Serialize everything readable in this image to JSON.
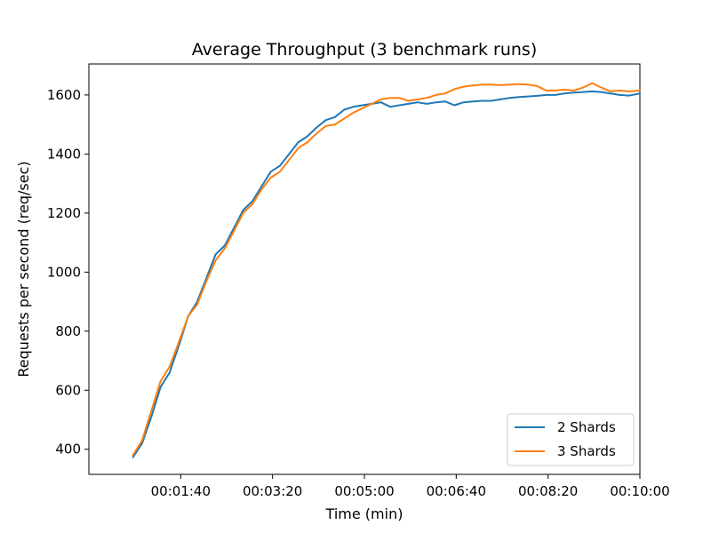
{
  "chart_data": {
    "type": "line",
    "title": "Average Throughput (3 benchmark runs)",
    "xlabel": "Time (min)",
    "ylabel": "Requests per second (req/sec)",
    "xlim": [
      0,
      600
    ],
    "ylim": [
      315,
      1705
    ],
    "x_ticks": [
      {
        "value": 100,
        "label": "00:01:40"
      },
      {
        "value": 200,
        "label": "00:03:20"
      },
      {
        "value": 300,
        "label": "00:05:00"
      },
      {
        "value": 400,
        "label": "00:06:40"
      },
      {
        "value": 500,
        "label": "00:08:20"
      },
      {
        "value": 600,
        "label": "00:10:00"
      }
    ],
    "y_ticks": [
      {
        "value": 400,
        "label": "400"
      },
      {
        "value": 600,
        "label": "600"
      },
      {
        "value": 800,
        "label": "800"
      },
      {
        "value": 1000,
        "label": "1000"
      },
      {
        "value": 1200,
        "label": "1200"
      },
      {
        "value": 1400,
        "label": "1400"
      },
      {
        "value": 1600,
        "label": "1600"
      }
    ],
    "grid": false,
    "legend_position": "lower-right",
    "series": [
      {
        "name": "2 Shards",
        "color": "#1f77b4",
        "x": [
          48,
          58,
          68,
          78,
          88,
          100,
          108,
          118,
          128,
          138,
          148,
          158,
          168,
          178,
          188,
          198,
          208,
          218,
          228,
          238,
          248,
          258,
          268,
          278,
          288,
          298,
          308,
          318,
          328,
          338,
          348,
          358,
          368,
          378,
          388,
          398,
          408,
          418,
          428,
          438,
          448,
          458,
          468,
          478,
          488,
          498,
          508,
          518,
          528,
          538,
          548,
          558,
          568,
          578,
          588,
          600
        ],
        "y": [
          373,
          420,
          510,
          610,
          660,
          770,
          850,
          900,
          980,
          1060,
          1090,
          1150,
          1210,
          1240,
          1290,
          1340,
          1360,
          1400,
          1440,
          1460,
          1490,
          1515,
          1525,
          1550,
          1560,
          1565,
          1570,
          1575,
          1560,
          1565,
          1570,
          1575,
          1570,
          1575,
          1578,
          1565,
          1575,
          1578,
          1580,
          1580,
          1585,
          1590,
          1593,
          1595,
          1597,
          1600,
          1600,
          1605,
          1608,
          1610,
          1612,
          1610,
          1605,
          1600,
          1598,
          1605
        ]
      },
      {
        "name": "3 Shards",
        "color": "#ff7f0e",
        "x": [
          48,
          58,
          68,
          78,
          88,
          100,
          108,
          118,
          128,
          138,
          148,
          158,
          168,
          178,
          188,
          198,
          208,
          218,
          228,
          238,
          248,
          258,
          268,
          278,
          288,
          298,
          308,
          318,
          328,
          338,
          348,
          358,
          368,
          378,
          388,
          398,
          408,
          418,
          428,
          438,
          448,
          458,
          468,
          478,
          488,
          498,
          508,
          518,
          528,
          538,
          548,
          558,
          568,
          578,
          588,
          600
        ],
        "y": [
          380,
          430,
          530,
          630,
          680,
          780,
          850,
          890,
          970,
          1040,
          1080,
          1140,
          1200,
          1230,
          1280,
          1320,
          1340,
          1380,
          1420,
          1440,
          1470,
          1495,
          1500,
          1520,
          1540,
          1555,
          1570,
          1585,
          1590,
          1590,
          1580,
          1585,
          1590,
          1600,
          1605,
          1620,
          1628,
          1632,
          1635,
          1635,
          1633,
          1635,
          1637,
          1635,
          1630,
          1615,
          1615,
          1618,
          1615,
          1625,
          1640,
          1625,
          1612,
          1615,
          1612,
          1615
        ]
      }
    ]
  }
}
